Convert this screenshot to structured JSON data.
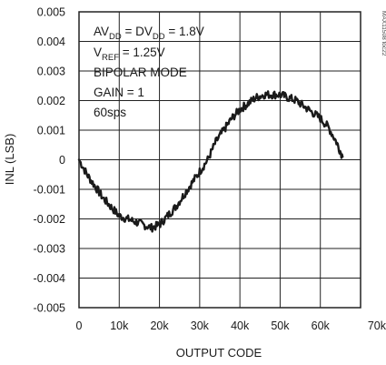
{
  "chart_data": {
    "type": "line",
    "xlabel": "OUTPUT CODE",
    "ylabel": "INL (LSB)",
    "xlim": [
      0,
      70000
    ],
    "ylim": [
      -0.005,
      0.005
    ],
    "x_ticks": [
      0,
      10000,
      20000,
      30000,
      40000,
      50000,
      60000,
      70000
    ],
    "x_tick_labels": [
      "0",
      "10k",
      "20k",
      "30k",
      "40k",
      "50k",
      "60k",
      "70k"
    ],
    "y_ticks": [
      0.005,
      0.004,
      0.003,
      0.002,
      0.001,
      0,
      -0.001,
      -0.002,
      -0.003,
      -0.004,
      -0.005
    ],
    "y_tick_labels": [
      "0.005",
      "0.004",
      "0.003",
      "0.002",
      "0.001",
      "0",
      "-0.001",
      "-0.002",
      "-0.003",
      "-0.004",
      "-0.005"
    ],
    "grid": true,
    "figure_id": "MAX11508 toc22",
    "annotations": {
      "line1": {
        "a": "AV",
        "a_sub": "DD",
        "b": " = DV",
        "b_sub": "DD",
        "c": " = 1.8V"
      },
      "line2": {
        "a": "V",
        "a_sub": "REF",
        "b": " = 1.25V"
      },
      "line3": "BIPOLAR MODE",
      "line4": "GAIN = 1",
      "line5": "60sps"
    },
    "series": [
      {
        "x": [
          0,
          2000,
          4000,
          6000,
          8000,
          10000,
          12000,
          14000,
          16000,
          18000,
          20000,
          22000,
          24000,
          26000,
          28000,
          30000,
          32000,
          34000,
          36000,
          38000,
          40000,
          42000,
          44000,
          46000,
          48000,
          50000,
          52000,
          54000,
          56000,
          58000,
          60000,
          62000,
          64000,
          65535
        ],
        "y": [
          0.0,
          -0.0005,
          -0.0009,
          -0.0013,
          -0.0016,
          -0.0019,
          -0.002,
          -0.0021,
          -0.0022,
          -0.0023,
          -0.0022,
          -0.0019,
          -0.0016,
          -0.0012,
          -0.0008,
          -0.0004,
          0.0,
          0.0006,
          0.001,
          0.0014,
          0.0017,
          0.0019,
          0.0021,
          0.0022,
          0.0022,
          0.0022,
          0.0021,
          0.002,
          0.0018,
          0.0016,
          0.0014,
          0.0011,
          0.0006,
          0.0001
        ]
      }
    ],
    "colors": {
      "line": "#1a1a1a",
      "grid": "#222222",
      "background": "#ffffff"
    }
  }
}
